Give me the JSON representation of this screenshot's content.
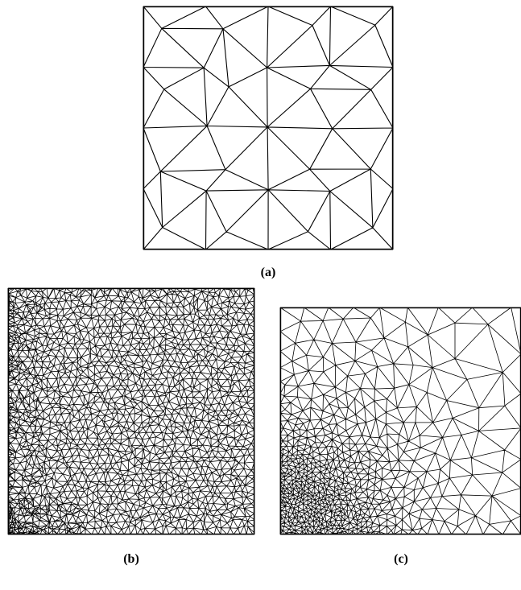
{
  "panels": [
    {
      "id": "a",
      "caption": "(a)",
      "mesh": "coarse-structured"
    },
    {
      "id": "b",
      "caption": "(b)",
      "mesh": "fine-uniform"
    },
    {
      "id": "c",
      "caption": "(c)",
      "mesh": "graded-refined-lower-left"
    }
  ],
  "colors": {
    "line": "#000000",
    "background": "#ffffff"
  }
}
